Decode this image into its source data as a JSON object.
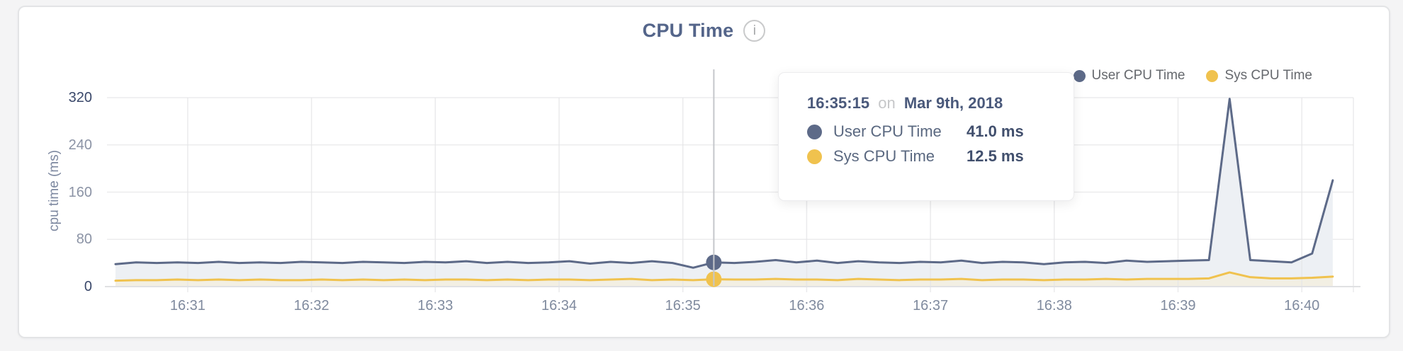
{
  "header": {
    "title": "CPU Time",
    "info_glyph": "i"
  },
  "legend": [
    {
      "label": "User CPU Time",
      "color": "#5d6a88"
    },
    {
      "label": "Sys CPU Time",
      "color": "#f0c24e"
    }
  ],
  "tooltip": {
    "time": "16:35:15",
    "conjunction": "on",
    "date": "Mar 9th, 2018",
    "rows": [
      {
        "label": "User CPU Time",
        "value": "41.0 ms",
        "color": "#5d6a88"
      },
      {
        "label": "Sys CPU Time",
        "value": "12.5 ms",
        "color": "#f0c24e"
      }
    ]
  },
  "chart_data": {
    "type": "area",
    "title": "CPU Time",
    "ylabel": "cpu time (ms)",
    "ylim": [
      0,
      320
    ],
    "yticks": [
      0,
      80,
      160,
      240,
      320
    ],
    "xticks": [
      "16:31",
      "16:32",
      "16:33",
      "16:34",
      "16:35",
      "16:36",
      "16:37",
      "16:38",
      "16:39",
      "16:40"
    ],
    "x_start": "16:30:25",
    "x_end": "16:40:25",
    "grid": true,
    "legend_position": "top-right",
    "x": [
      "16:30:25",
      "16:30:35",
      "16:30:45",
      "16:30:55",
      "16:31:05",
      "16:31:15",
      "16:31:25",
      "16:31:35",
      "16:31:45",
      "16:31:55",
      "16:32:05",
      "16:32:15",
      "16:32:25",
      "16:32:35",
      "16:32:45",
      "16:32:55",
      "16:33:05",
      "16:33:15",
      "16:33:25",
      "16:33:35",
      "16:33:45",
      "16:33:55",
      "16:34:05",
      "16:34:15",
      "16:34:25",
      "16:34:35",
      "16:34:45",
      "16:34:55",
      "16:35:05",
      "16:35:15",
      "16:35:25",
      "16:35:35",
      "16:35:45",
      "16:35:55",
      "16:36:05",
      "16:36:15",
      "16:36:25",
      "16:36:35",
      "16:36:45",
      "16:36:55",
      "16:37:05",
      "16:37:15",
      "16:37:25",
      "16:37:35",
      "16:37:45",
      "16:37:55",
      "16:38:05",
      "16:38:15",
      "16:38:25",
      "16:38:35",
      "16:38:45",
      "16:38:55",
      "16:39:05",
      "16:39:15",
      "16:39:25",
      "16:39:35",
      "16:39:45",
      "16:39:55",
      "16:40:05",
      "16:40:15"
    ],
    "series": [
      {
        "name": "User CPU Time",
        "color": "#5d6a88",
        "fill": "#edf0f4",
        "values": [
          38,
          41,
          40,
          41,
          40,
          42,
          40,
          41,
          40,
          42,
          41,
          40,
          42,
          41,
          40,
          42,
          41,
          43,
          40,
          42,
          40,
          41,
          43,
          39,
          42,
          40,
          43,
          40,
          32,
          41,
          40,
          42,
          45,
          41,
          44,
          40,
          43,
          41,
          40,
          42,
          41,
          44,
          40,
          42,
          41,
          38,
          41,
          42,
          40,
          44,
          42,
          43,
          44,
          45,
          318,
          45,
          43,
          41,
          56,
          180
        ]
      },
      {
        "name": "Sys CPU Time",
        "color": "#f0c24e",
        "fill": "#f2efe3",
        "values": [
          10,
          11,
          11,
          12,
          11,
          12,
          11,
          12,
          11,
          11,
          12,
          11,
          12,
          11,
          12,
          11,
          12,
          12,
          11,
          12,
          11,
          12,
          12,
          11,
          12,
          13,
          11,
          12,
          11,
          12.5,
          12,
          12,
          13,
          12,
          12,
          11,
          13,
          12,
          11,
          12,
          12,
          13,
          11,
          12,
          12,
          11,
          12,
          12,
          13,
          12,
          13,
          13,
          13,
          14,
          24,
          16,
          14,
          14,
          15,
          17
        ]
      }
    ],
    "highlight": {
      "time": "16:35:15",
      "index": 29,
      "user": 41.0,
      "sys": 12.5
    }
  }
}
